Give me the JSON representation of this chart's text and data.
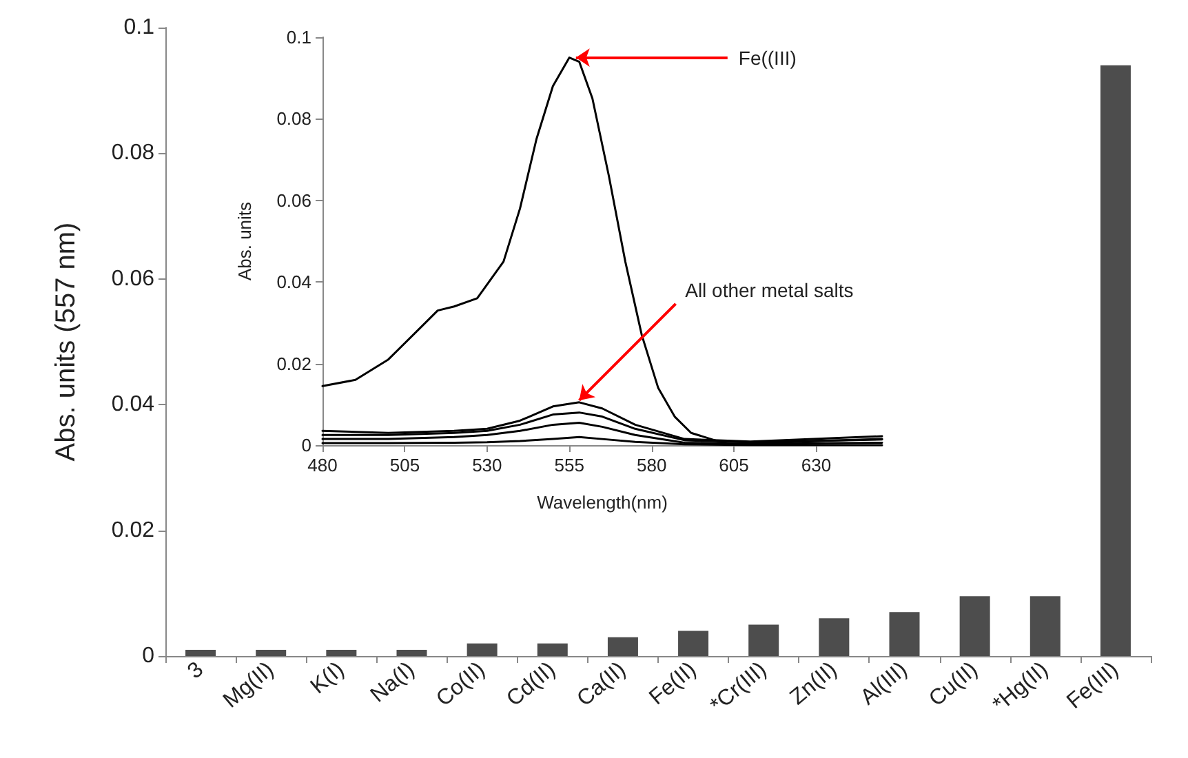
{
  "chart_data": [
    {
      "type": "bar",
      "ylabel": "Abs. units (557 nm)",
      "categories": [
        "3",
        "Mg(II)",
        "K(I)",
        "Na(I)",
        "Co(II)",
        "Cd(II)",
        "Ca(II)",
        "Fe(II)",
        "*Cr(III)",
        "Zn(II)",
        "Al(III)",
        "Cu(II)",
        "*Hg(II)",
        "Fe(III)"
      ],
      "values": [
        0.001,
        0.001,
        0.001,
        0.001,
        0.002,
        0.002,
        0.003,
        0.004,
        0.005,
        0.006,
        0.007,
        0.0095,
        0.0095,
        0.094
      ],
      "color": "#4d4d4d",
      "ylim": [
        0,
        0.1
      ],
      "yticks": [
        0,
        0.02,
        0.04,
        0.06,
        0.08,
        0.1
      ]
    },
    {
      "type": "line",
      "xlabel": "Wavelength(nm)",
      "ylabel": "Abs. units",
      "xlim": [
        480,
        650
      ],
      "xticks": [
        480,
        505,
        530,
        555,
        580,
        605,
        630
      ],
      "ylim": [
        0,
        0.1
      ],
      "yticks": [
        0,
        0.02,
        0.04,
        0.06,
        0.08,
        0.1
      ],
      "marker": "none",
      "line_style": "solid",
      "annotations": [
        {
          "text": "Fe((III)",
          "x": 557,
          "y": 0.095
        },
        {
          "text": "All other metal salts",
          "x": 558,
          "y": 0.011
        }
      ],
      "series": [
        {
          "color": "#000000",
          "x": [
            480,
            490,
            500,
            510,
            515,
            520,
            527,
            535,
            540,
            545,
            550,
            555,
            558,
            562,
            567,
            572,
            577,
            582,
            587,
            592,
            600,
            615,
            630,
            650
          ],
          "values": [
            0.0145,
            0.016,
            0.021,
            0.029,
            0.033,
            0.034,
            0.036,
            0.045,
            0.058,
            0.075,
            0.088,
            0.095,
            0.094,
            0.085,
            0.066,
            0.045,
            0.027,
            0.014,
            0.007,
            0.003,
            0.001,
            0.0005,
            0.001,
            0.0015
          ]
        },
        {
          "color": "#000000",
          "x": [
            480,
            500,
            520,
            530,
            540,
            550,
            558,
            565,
            575,
            590,
            610,
            650
          ],
          "values": [
            0.0035,
            0.003,
            0.0035,
            0.004,
            0.006,
            0.0095,
            0.0105,
            0.009,
            0.005,
            0.0015,
            0.0009,
            0.0022
          ]
        },
        {
          "color": "#000000",
          "x": [
            480,
            500,
            520,
            530,
            540,
            550,
            558,
            565,
            575,
            590,
            610,
            650
          ],
          "values": [
            0.0025,
            0.0025,
            0.003,
            0.0035,
            0.005,
            0.0075,
            0.008,
            0.007,
            0.004,
            0.0012,
            0.0007,
            0.0014
          ]
        },
        {
          "color": "#000000",
          "x": [
            480,
            500,
            520,
            530,
            540,
            550,
            558,
            565,
            575,
            590,
            610,
            650
          ],
          "values": [
            0.0015,
            0.0015,
            0.002,
            0.0025,
            0.0035,
            0.005,
            0.0055,
            0.0045,
            0.0025,
            0.0006,
            0.0003,
            0.0006
          ]
        },
        {
          "color": "#000000",
          "x": [
            480,
            500,
            520,
            530,
            540,
            550,
            558,
            565,
            575,
            590,
            610,
            650
          ],
          "values": [
            0.0005,
            0.0005,
            0.0006,
            0.0007,
            0.001,
            0.0015,
            0.002,
            0.0015,
            0.0008,
            0.0002,
            0,
            0
          ]
        }
      ]
    }
  ]
}
